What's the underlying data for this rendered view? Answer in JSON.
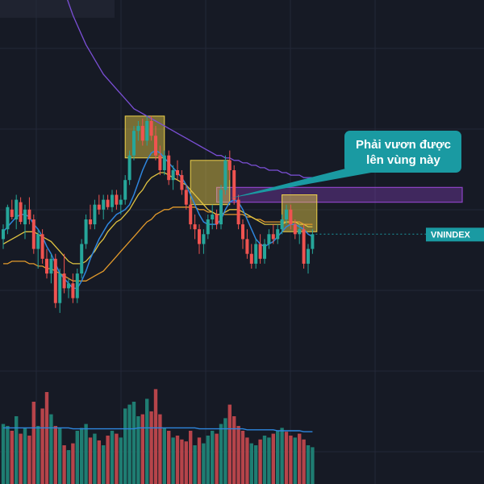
{
  "colors": {
    "background": "#161a25",
    "grid": "#232838",
    "up": "#26a69a",
    "down": "#ef5350",
    "volume_up": "#1f7d72",
    "volume_down": "#b6444a",
    "ma_fast": "#2e86de",
    "ma_mid": "#e0c341",
    "ma_slow": "#e39a2b",
    "ma_long": "#7b4fd6",
    "volume_ma": "#2e86de",
    "highlight_box": "#f0d24a",
    "zone": "#8e44c8",
    "callout": "#1a9aa2",
    "price_label": "#1a9aa2"
  },
  "callout": {
    "line1": "Phải vươn được",
    "line2": "lên vùng này"
  },
  "price_label": {
    "symbol": "VNINDEX"
  },
  "chart_data": {
    "type": "candlestick",
    "ylim": [
      0,
      100
    ],
    "volume_ylim": [
      0,
      100
    ],
    "candles": [
      {
        "o": 52,
        "h": 58,
        "l": 48,
        "c": 56
      },
      {
        "o": 56,
        "h": 66,
        "l": 54,
        "c": 65
      },
      {
        "o": 64,
        "h": 68,
        "l": 60,
        "c": 61
      },
      {
        "o": 60,
        "h": 70,
        "l": 56,
        "c": 68
      },
      {
        "o": 67,
        "h": 69,
        "l": 58,
        "c": 59
      },
      {
        "o": 58,
        "h": 66,
        "l": 52,
        "c": 64
      },
      {
        "o": 64,
        "h": 69,
        "l": 58,
        "c": 60
      },
      {
        "o": 60,
        "h": 62,
        "l": 46,
        "c": 48
      },
      {
        "o": 48,
        "h": 56,
        "l": 40,
        "c": 54
      },
      {
        "o": 54,
        "h": 56,
        "l": 42,
        "c": 44
      },
      {
        "o": 44,
        "h": 48,
        "l": 36,
        "c": 38
      },
      {
        "o": 38,
        "h": 46,
        "l": 34,
        "c": 44
      },
      {
        "o": 44,
        "h": 46,
        "l": 24,
        "c": 26
      },
      {
        "o": 26,
        "h": 40,
        "l": 22,
        "c": 38
      },
      {
        "o": 38,
        "h": 46,
        "l": 30,
        "c": 32
      },
      {
        "o": 32,
        "h": 36,
        "l": 28,
        "c": 34
      },
      {
        "o": 34,
        "h": 38,
        "l": 26,
        "c": 28
      },
      {
        "o": 28,
        "h": 40,
        "l": 26,
        "c": 38
      },
      {
        "o": 38,
        "h": 52,
        "l": 36,
        "c": 50
      },
      {
        "o": 50,
        "h": 62,
        "l": 48,
        "c": 60
      },
      {
        "o": 60,
        "h": 66,
        "l": 56,
        "c": 58
      },
      {
        "o": 58,
        "h": 68,
        "l": 56,
        "c": 66
      },
      {
        "o": 66,
        "h": 70,
        "l": 62,
        "c": 64
      },
      {
        "o": 64,
        "h": 70,
        "l": 60,
        "c": 68
      },
      {
        "o": 68,
        "h": 70,
        "l": 64,
        "c": 65
      },
      {
        "o": 65,
        "h": 72,
        "l": 63,
        "c": 70
      },
      {
        "o": 70,
        "h": 72,
        "l": 64,
        "c": 66
      },
      {
        "o": 66,
        "h": 70,
        "l": 62,
        "c": 68
      },
      {
        "o": 68,
        "h": 78,
        "l": 66,
        "c": 76
      },
      {
        "o": 76,
        "h": 88,
        "l": 74,
        "c": 86
      },
      {
        "o": 86,
        "h": 98,
        "l": 84,
        "c": 96
      },
      {
        "o": 96,
        "h": 100,
        "l": 92,
        "c": 98
      },
      {
        "o": 98,
        "h": 101,
        "l": 90,
        "c": 92
      },
      {
        "o": 92,
        "h": 102,
        "l": 90,
        "c": 100
      },
      {
        "o": 100,
        "h": 102,
        "l": 92,
        "c": 94
      },
      {
        "o": 94,
        "h": 98,
        "l": 84,
        "c": 86
      },
      {
        "o": 86,
        "h": 90,
        "l": 78,
        "c": 80
      },
      {
        "o": 80,
        "h": 88,
        "l": 78,
        "c": 86
      },
      {
        "o": 86,
        "h": 88,
        "l": 74,
        "c": 76
      },
      {
        "o": 76,
        "h": 82,
        "l": 72,
        "c": 80
      },
      {
        "o": 80,
        "h": 84,
        "l": 76,
        "c": 78
      },
      {
        "o": 78,
        "h": 80,
        "l": 70,
        "c": 72
      },
      {
        "o": 72,
        "h": 74,
        "l": 64,
        "c": 66
      },
      {
        "o": 66,
        "h": 68,
        "l": 56,
        "c": 58
      },
      {
        "o": 58,
        "h": 62,
        "l": 52,
        "c": 56
      },
      {
        "o": 56,
        "h": 58,
        "l": 46,
        "c": 50
      },
      {
        "o": 50,
        "h": 56,
        "l": 46,
        "c": 54
      },
      {
        "o": 54,
        "h": 62,
        "l": 52,
        "c": 60
      },
      {
        "o": 60,
        "h": 66,
        "l": 56,
        "c": 62
      },
      {
        "o": 62,
        "h": 64,
        "l": 56,
        "c": 58
      },
      {
        "o": 58,
        "h": 74,
        "l": 56,
        "c": 72
      },
      {
        "o": 72,
        "h": 86,
        "l": 70,
        "c": 84
      },
      {
        "o": 84,
        "h": 88,
        "l": 76,
        "c": 80
      },
      {
        "o": 80,
        "h": 82,
        "l": 66,
        "c": 68
      },
      {
        "o": 68,
        "h": 70,
        "l": 56,
        "c": 58
      },
      {
        "o": 58,
        "h": 60,
        "l": 48,
        "c": 52
      },
      {
        "o": 52,
        "h": 56,
        "l": 44,
        "c": 46
      },
      {
        "o": 46,
        "h": 50,
        "l": 40,
        "c": 42
      },
      {
        "o": 42,
        "h": 52,
        "l": 40,
        "c": 50
      },
      {
        "o": 50,
        "h": 54,
        "l": 42,
        "c": 44
      },
      {
        "o": 44,
        "h": 52,
        "l": 42,
        "c": 50
      },
      {
        "o": 50,
        "h": 56,
        "l": 48,
        "c": 54
      },
      {
        "o": 54,
        "h": 58,
        "l": 50,
        "c": 52
      },
      {
        "o": 52,
        "h": 58,
        "l": 50,
        "c": 56
      },
      {
        "o": 56,
        "h": 62,
        "l": 54,
        "c": 60
      },
      {
        "o": 60,
        "h": 66,
        "l": 58,
        "c": 64
      },
      {
        "o": 64,
        "h": 66,
        "l": 56,
        "c": 58
      },
      {
        "o": 58,
        "h": 60,
        "l": 52,
        "c": 54
      },
      {
        "o": 54,
        "h": 58,
        "l": 50,
        "c": 56
      },
      {
        "o": 56,
        "h": 58,
        "l": 40,
        "c": 42
      },
      {
        "o": 42,
        "h": 50,
        "l": 38,
        "c": 48
      },
      {
        "o": 48,
        "h": 56,
        "l": 46,
        "c": 54
      }
    ],
    "volume": [
      {
        "v": 62,
        "up": true
      },
      {
        "v": 60,
        "up": true
      },
      {
        "v": 55,
        "up": false
      },
      {
        "v": 70,
        "up": true
      },
      {
        "v": 52,
        "up": false
      },
      {
        "v": 58,
        "up": true
      },
      {
        "v": 50,
        "up": false
      },
      {
        "v": 85,
        "up": false
      },
      {
        "v": 60,
        "up": true
      },
      {
        "v": 78,
        "up": false
      },
      {
        "v": 95,
        "up": false
      },
      {
        "v": 72,
        "up": true
      },
      {
        "v": 60,
        "up": false
      },
      {
        "v": 58,
        "up": true
      },
      {
        "v": 40,
        "up": false
      },
      {
        "v": 35,
        "up": true
      },
      {
        "v": 42,
        "up": false
      },
      {
        "v": 55,
        "up": true
      },
      {
        "v": 58,
        "up": true
      },
      {
        "v": 62,
        "up": true
      },
      {
        "v": 48,
        "up": false
      },
      {
        "v": 52,
        "up": true
      },
      {
        "v": 45,
        "up": false
      },
      {
        "v": 40,
        "up": true
      },
      {
        "v": 50,
        "up": false
      },
      {
        "v": 55,
        "up": true
      },
      {
        "v": 52,
        "up": false
      },
      {
        "v": 48,
        "up": true
      },
      {
        "v": 78,
        "up": true
      },
      {
        "v": 82,
        "up": true
      },
      {
        "v": 85,
        "up": true
      },
      {
        "v": 70,
        "up": true
      },
      {
        "v": 72,
        "up": false
      },
      {
        "v": 88,
        "up": true
      },
      {
        "v": 75,
        "up": false
      },
      {
        "v": 98,
        "up": false
      },
      {
        "v": 72,
        "up": false
      },
      {
        "v": 58,
        "up": true
      },
      {
        "v": 55,
        "up": false
      },
      {
        "v": 48,
        "up": true
      },
      {
        "v": 50,
        "up": false
      },
      {
        "v": 46,
        "up": false
      },
      {
        "v": 44,
        "up": false
      },
      {
        "v": 55,
        "up": false
      },
      {
        "v": 40,
        "up": true
      },
      {
        "v": 48,
        "up": false
      },
      {
        "v": 42,
        "up": true
      },
      {
        "v": 50,
        "up": true
      },
      {
        "v": 55,
        "up": true
      },
      {
        "v": 52,
        "up": false
      },
      {
        "v": 62,
        "up": true
      },
      {
        "v": 68,
        "up": true
      },
      {
        "v": 82,
        "up": false
      },
      {
        "v": 70,
        "up": false
      },
      {
        "v": 60,
        "up": false
      },
      {
        "v": 55,
        "up": false
      },
      {
        "v": 48,
        "up": false
      },
      {
        "v": 42,
        "up": true
      },
      {
        "v": 40,
        "up": true
      },
      {
        "v": 46,
        "up": false
      },
      {
        "v": 50,
        "up": true
      },
      {
        "v": 48,
        "up": true
      },
      {
        "v": 52,
        "up": false
      },
      {
        "v": 55,
        "up": true
      },
      {
        "v": 58,
        "up": true
      },
      {
        "v": 54,
        "up": false
      },
      {
        "v": 50,
        "up": false
      },
      {
        "v": 48,
        "up": true
      },
      {
        "v": 52,
        "up": false
      },
      {
        "v": 46,
        "up": false
      },
      {
        "v": 40,
        "up": true
      },
      {
        "v": 38,
        "up": true
      }
    ],
    "ma_fast": [
      55,
      57,
      59,
      61,
      62,
      62,
      61,
      58,
      56,
      53,
      49,
      46,
      42,
      38,
      36,
      34,
      32,
      32,
      35,
      39,
      44,
      48,
      52,
      55,
      58,
      60,
      62,
      63,
      64,
      66,
      70,
      75,
      80,
      84,
      87,
      88,
      87,
      85,
      83,
      81,
      79,
      77,
      74,
      70,
      66,
      62,
      59,
      58,
      58,
      58,
      60,
      64,
      67,
      68,
      67,
      64,
      60,
      56,
      52,
      50,
      49,
      50,
      51,
      53,
      55,
      57,
      58,
      58,
      57,
      56,
      54,
      53
    ],
    "ma_mid": [
      50,
      51,
      52,
      53,
      54,
      55,
      55,
      55,
      54,
      53,
      52,
      51,
      49,
      47,
      45,
      43,
      42,
      42,
      42,
      43,
      45,
      47,
      50,
      52,
      55,
      57,
      59,
      60,
      62,
      64,
      67,
      70,
      72,
      75,
      77,
      78,
      79,
      79,
      78,
      77,
      76,
      75,
      74,
      72,
      70,
      68,
      66,
      64,
      63,
      62,
      62,
      63,
      64,
      64,
      64,
      63,
      62,
      61,
      60,
      59,
      58,
      58,
      58,
      58,
      58,
      59,
      59,
      59,
      58,
      58,
      57,
      57
    ],
    "ma_slow": [
      42,
      42,
      43,
      43,
      43,
      43,
      42,
      42,
      41,
      41,
      40,
      40,
      39,
      38,
      37,
      36,
      35,
      35,
      35,
      35,
      36,
      37,
      38,
      39,
      41,
      43,
      45,
      47,
      49,
      51,
      53,
      55,
      57,
      59,
      60,
      62,
      63,
      64,
      64,
      65,
      65,
      65,
      65,
      65,
      65,
      64,
      64,
      63,
      63,
      62,
      62,
      62,
      62,
      62,
      62,
      62,
      61,
      61,
      60,
      60,
      59,
      59,
      59,
      59,
      59,
      59,
      59,
      59,
      59,
      58,
      58,
      58
    ],
    "ma_long": [
      250,
      242,
      234,
      226,
      218,
      210,
      203,
      196,
      189,
      182,
      176,
      170,
      164,
      158,
      153,
      148,
      143,
      139,
      135,
      131,
      128,
      125,
      122,
      119,
      117,
      115,
      113,
      111,
      109,
      107,
      105,
      104,
      103,
      102,
      101,
      100,
      99,
      98,
      97,
      96,
      95,
      94,
      93,
      92,
      91,
      90,
      89,
      88,
      87,
      86,
      86,
      85,
      85,
      84,
      84,
      83,
      83,
      82,
      82,
      81,
      81,
      80,
      80,
      80,
      79,
      79,
      78,
      78,
      78,
      77,
      77,
      77
    ],
    "volume_ma": [
      58,
      58,
      58,
      58,
      58,
      58,
      58,
      58,
      58,
      58,
      58,
      58,
      58,
      58,
      58,
      58,
      57,
      57,
      57,
      57,
      57,
      57,
      57,
      57,
      57,
      57,
      57,
      57,
      57,
      57,
      57,
      58,
      58,
      58,
      58,
      58,
      58,
      58,
      58,
      58,
      58,
      58,
      58,
      58,
      58,
      57,
      57,
      57,
      57,
      57,
      57,
      57,
      57,
      57,
      57,
      57,
      56,
      56,
      56,
      56,
      56,
      56,
      56,
      55,
      55,
      55,
      55,
      55,
      55,
      54,
      54,
      54
    ],
    "highlight_boxes": [
      {
        "from": 28,
        "to": 37,
        "low": 85,
        "high": 102
      },
      {
        "from": 43,
        "to": 52,
        "low": 66,
        "high": 84
      },
      {
        "from": 64,
        "to": 72,
        "low": 55,
        "high": 70
      }
    ],
    "resistance_zone": {
      "from": 49,
      "low": 67,
      "high": 73
    },
    "last_price": 54
  }
}
